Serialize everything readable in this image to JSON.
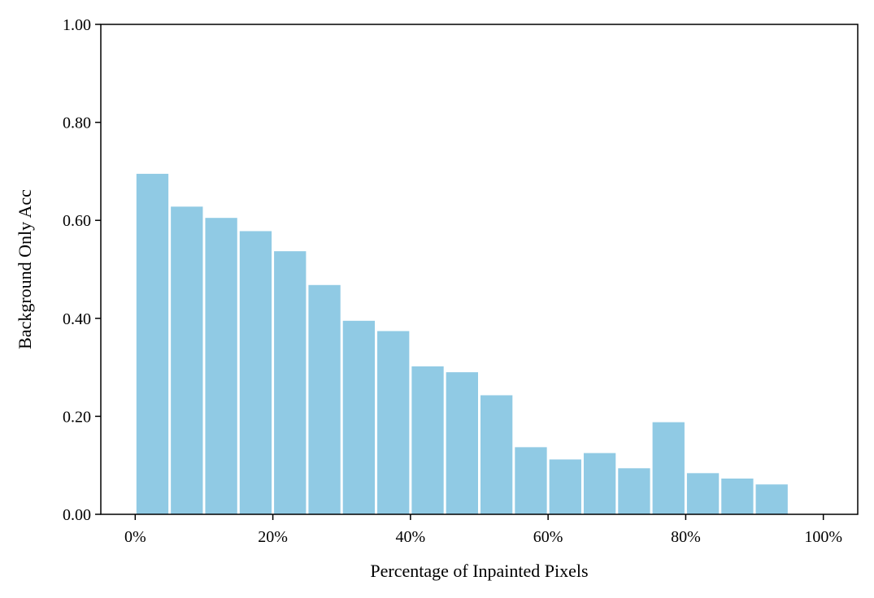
{
  "chart_data": {
    "type": "bar",
    "xlabel": "Percentage of Inpainted Pixels",
    "ylabel": "Background Only Acc",
    "bin_width": 5,
    "categories": [
      "0-5%",
      "5-10%",
      "10-15%",
      "15-20%",
      "20-25%",
      "25-30%",
      "30-35%",
      "35-40%",
      "40-45%",
      "45-50%",
      "50-55%",
      "55-60%",
      "60-65%",
      "65-70%",
      "70-75%",
      "75-80%",
      "80-85%",
      "85-90%",
      "90-95%",
      "95-100%"
    ],
    "x_start": [
      0,
      5,
      10,
      15,
      20,
      25,
      30,
      35,
      40,
      45,
      50,
      55,
      60,
      65,
      70,
      75,
      80,
      85,
      90,
      95
    ],
    "values": [
      0.695,
      0.628,
      0.605,
      0.578,
      0.537,
      0.468,
      0.395,
      0.374,
      0.302,
      0.29,
      0.243,
      0.137,
      0.112,
      0.125,
      0.094,
      0.188,
      0.084,
      0.073,
      0.061,
      0.0
    ],
    "xlim": [
      -5,
      105
    ],
    "ylim": [
      0,
      1.0
    ],
    "xticks": [
      0,
      20,
      40,
      60,
      80,
      100
    ],
    "xtick_labels": [
      "0%",
      "20%",
      "40%",
      "60%",
      "80%",
      "100%"
    ],
    "yticks": [
      0,
      0.2,
      0.4,
      0.6,
      0.8,
      1.0
    ],
    "ytick_labels": [
      "0.00",
      "0.20",
      "0.40",
      "0.60",
      "0.80",
      "1.00"
    ],
    "bar_color": "#90CAE4",
    "grid": false,
    "legend": "none"
  }
}
